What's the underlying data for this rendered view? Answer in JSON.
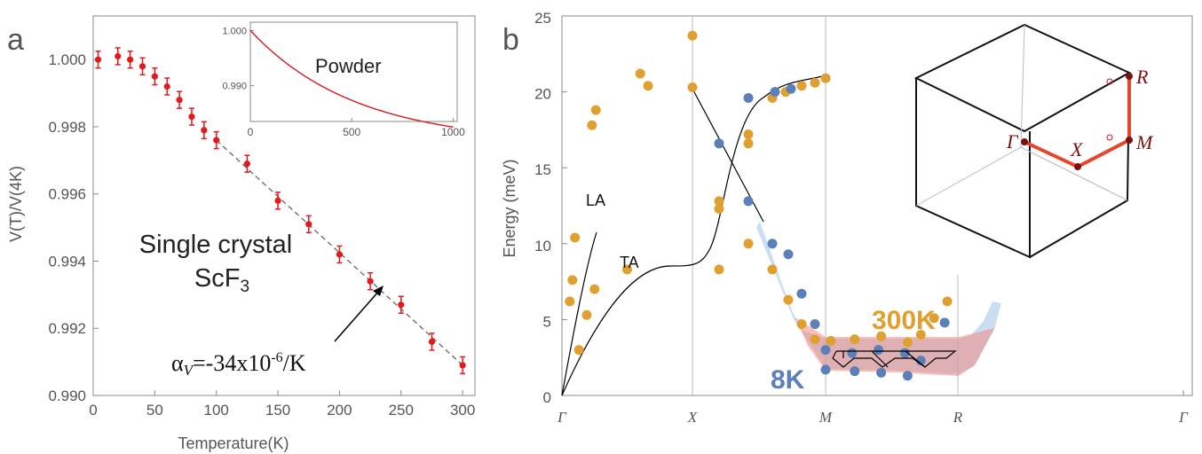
{
  "chart_data": [
    {
      "type": "scatter",
      "panel_label": "a",
      "xlabel": "Temperature(K)",
      "ylabel": "V(T)/V(4K)",
      "xlim": [
        0,
        310
      ],
      "ylim": [
        0.99,
        1.0013
      ],
      "xticks": [
        0,
        50,
        100,
        150,
        200,
        250,
        300
      ],
      "yticks": [
        0.99,
        0.992,
        0.994,
        0.996,
        0.998,
        1.0
      ],
      "ytick_labels": [
        "0.990",
        "0.992",
        "0.994",
        "0.996",
        "0.998",
        "1.000"
      ],
      "grid": false,
      "series": [
        {
          "color": "#e31a1c",
          "x": [
            4,
            20,
            30,
            40,
            50,
            60,
            70,
            80,
            90,
            100,
            125,
            150,
            175,
            200,
            225,
            250,
            275,
            300
          ],
          "y": [
            1.0,
            1.0001,
            1.0,
            0.9998,
            0.9995,
            0.9992,
            0.9988,
            0.9983,
            0.9979,
            0.9976,
            0.9969,
            0.9958,
            0.9951,
            0.9942,
            0.9934,
            0.9927,
            0.9916,
            0.9909
          ],
          "yerr": 0.00025
        }
      ],
      "fit_line": {
        "x": [
          100,
          300
        ],
        "y": [
          0.9976,
          0.9909
        ],
        "style": "dashed"
      },
      "annotations": {
        "title_line1": "Single crystal",
        "title_line2": "ScF",
        "title_sub": "3",
        "alpha_symbol": "α",
        "alpha_sub": "V",
        "alpha_text1": "=-34x10",
        "alpha_sup": "-6",
        "alpha_text2": "/K"
      },
      "inset": {
        "label": "Powder",
        "xlim": [
          0,
          1020
        ],
        "ylim": [
          0.9835,
          1.0015
        ],
        "xticks": [
          0,
          500,
          1000
        ],
        "yticks": [
          0.99,
          1.0
        ],
        "ytick_labels": [
          "0.990",
          "1.000"
        ],
        "curve": {
          "a": 0.9795,
          "b": 0.0205,
          "tau": 520,
          "color": "#d7191c"
        }
      }
    },
    {
      "type": "scatter",
      "panel_label": "b",
      "ylabel": "Energy (meV)",
      "ylim": [
        0,
        25
      ],
      "yticks": [
        0,
        5,
        10,
        15,
        20,
        25
      ],
      "xtick_labels": [
        "Γ",
        "X",
        "M",
        "R",
        "Γ"
      ],
      "xtick_positions": [
        0,
        1,
        1.5,
        2.0,
        3.0
      ],
      "grid": false,
      "series": [
        {
          "name": "300K",
          "color": "#e0a030",
          "x": [
            0.06,
            0.08,
            0.1,
            0.13,
            0.19,
            0.25,
            0.5,
            0.23,
            0.26,
            0.6,
            0.66,
            1.0,
            1.0,
            1.1,
            1.1,
            1.21,
            1.21,
            1.3,
            1.35,
            1.41,
            1.46,
            1.5,
            1.1,
            1.21,
            1.3,
            1.36,
            1.41,
            1.46,
            1.52,
            1.61,
            1.71,
            1.81,
            1.86,
            1.91,
            1.96
          ],
          "y": [
            6.2,
            7.6,
            10.4,
            3.0,
            5.3,
            7.0,
            8.3,
            17.8,
            18.8,
            21.2,
            20.4,
            20.3,
            23.7,
            8.3,
            12.3,
            16.6,
            17.2,
            19.6,
            20.0,
            20.4,
            20.6,
            20.9,
            12.8,
            10.0,
            8.3,
            6.3,
            4.7,
            3.7,
            3.6,
            3.7,
            3.9,
            3.5,
            4.0,
            5.1,
            6.2
          ],
          "x_mode": "data"
        },
        {
          "name": "8K",
          "color": "#5b7fb9",
          "x": [
            1.21,
            1.3,
            1.36,
            1.41,
            1.46,
            1.5,
            1.61,
            1.71,
            1.81,
            1.86,
            1.5,
            1.6,
            1.7,
            1.8,
            1.95,
            1.1,
            1.21,
            1.31,
            1.37
          ],
          "y": [
            12.8,
            10.0,
            9.3,
            6.7,
            4.7,
            1.7,
            1.6,
            1.5,
            1.3,
            2.3,
            3.0,
            2.8,
            3.0,
            2.8,
            4.8,
            16.6,
            19.6,
            20.0,
            20.2
          ],
          "x_mode": "data"
        }
      ],
      "labels": {
        "la": "LA",
        "ta": "TA",
        "k300": "300K",
        "k8": "8K"
      },
      "bz_inset": {
        "gamma": "Γ",
        "x": "X",
        "m": "M",
        "r": "R"
      }
    }
  ]
}
